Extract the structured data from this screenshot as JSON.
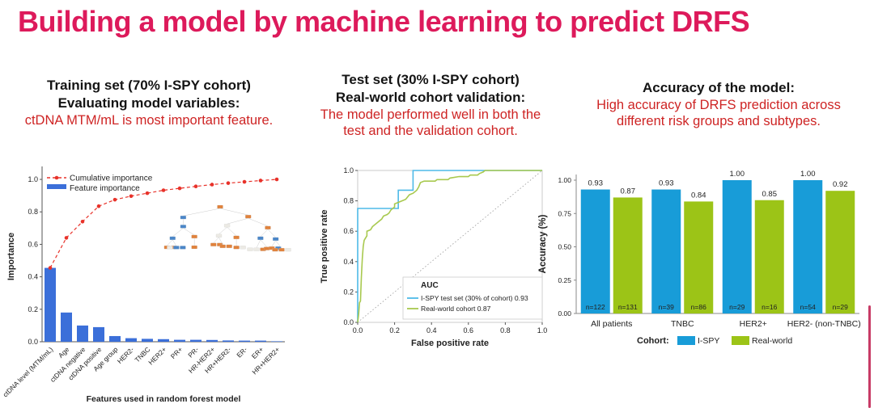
{
  "title": {
    "text": "Building a model by machine learning to predict DRFS",
    "color": "#dd1a5b"
  },
  "panel_left": {
    "heading1": "Training set (70% I-SPY cohort)",
    "heading2": "Evaluating model variables:",
    "sub1": "ctDNA MTM/mL is most important feature."
  },
  "panel_mid": {
    "heading1": "Test set (30% I-SPY cohort)",
    "heading2": "Real-world cohort validation:",
    "sub1": "The model performed well in both the",
    "sub2": "test and the validation cohort."
  },
  "panel_right": {
    "heading1": "Accuracy of the model:",
    "sub1": "High accuracy of DRFS prediction across",
    "sub2": "different risk groups and subtypes."
  },
  "colors": {
    "title_pink": "#dd1a5b",
    "subtitle_red": "#ce2424",
    "feature_bar_blue": "#3b6fd9",
    "cumulative_red": "#e8322a",
    "roc_cyan": "#4fbae8",
    "roc_green": "#a8c94f",
    "ispy_blue": "#189cd8",
    "realworld_green": "#9cc417",
    "n_label_navy": "#14306a"
  },
  "chart_data": [
    {
      "id": "feature-importance",
      "type": "bar-line",
      "xlabel": "Features used in random forest model",
      "ylabel": "Importance",
      "ylim": [
        0,
        1.05
      ],
      "yticks": [
        0.0,
        0.2,
        0.4,
        0.6,
        0.8,
        1.0
      ],
      "grid": false,
      "legend_position": "top-left",
      "inset": "random-forest-tree-diagram",
      "categories": [
        "ctDNA level (MTM/mL)",
        "Age",
        "ctDNA negative",
        "ctDNA positive",
        "Age group",
        "HER2-",
        "TNBC",
        "HER2+",
        "PR+",
        "PR-",
        "HR-HER2+",
        "HR+HER2-",
        "ER-",
        "ER+",
        "HR+HER2+"
      ],
      "series": [
        {
          "name": "Cumulative importance",
          "type": "line",
          "style": "dashed",
          "color": "#e8322a",
          "values": [
            0.455,
            0.64,
            0.74,
            0.835,
            0.875,
            0.897,
            0.915,
            0.933,
            0.945,
            0.957,
            0.968,
            0.977,
            0.985,
            0.993,
            1.0
          ]
        },
        {
          "name": "Feature importance",
          "type": "bar",
          "color": "#3b6fd9",
          "values": [
            0.455,
            0.18,
            0.1,
            0.09,
            0.035,
            0.022,
            0.018,
            0.016,
            0.012,
            0.012,
            0.011,
            0.008,
            0.007,
            0.007,
            0.003
          ]
        }
      ]
    },
    {
      "id": "roc",
      "type": "line",
      "xlabel": "False positive rate",
      "ylabel": "True positive rate",
      "xlim": [
        0,
        1
      ],
      "ylim": [
        0,
        1
      ],
      "xticks": [
        0.0,
        0.2,
        0.4,
        0.6,
        0.8,
        1.0
      ],
      "yticks": [
        0.0,
        0.2,
        0.4,
        0.6,
        0.8,
        1.0
      ],
      "grid": false,
      "diagonal_reference": true,
      "legend_title": "AUC",
      "legend_position": "bottom-right",
      "series": [
        {
          "name": "I-SPY test set (30% of cohort) 0.93",
          "auc": 0.93,
          "color": "#4fbae8",
          "points": [
            [
              0,
              0
            ],
            [
              0,
              0.75
            ],
            [
              0.22,
              0.75
            ],
            [
              0.22,
              0.87
            ],
            [
              0.3,
              0.87
            ],
            [
              0.3,
              1.0
            ],
            [
              1.0,
              1.0
            ]
          ]
        },
        {
          "name": "Real-world cohort 0.87",
          "auc": 0.87,
          "color": "#a8c94f",
          "points": [
            [
              0,
              0
            ],
            [
              0.005,
              0.05
            ],
            [
              0.01,
              0.13
            ],
            [
              0.015,
              0.14
            ],
            [
              0.02,
              0.3
            ],
            [
              0.025,
              0.42
            ],
            [
              0.03,
              0.5
            ],
            [
              0.035,
              0.54
            ],
            [
              0.04,
              0.55
            ],
            [
              0.05,
              0.57
            ],
            [
              0.05,
              0.6
            ],
            [
              0.07,
              0.61
            ],
            [
              0.08,
              0.63
            ],
            [
              0.1,
              0.65
            ],
            [
              0.11,
              0.66
            ],
            [
              0.13,
              0.68
            ],
            [
              0.14,
              0.7
            ],
            [
              0.16,
              0.71
            ],
            [
              0.17,
              0.72
            ],
            [
              0.18,
              0.74
            ],
            [
              0.2,
              0.76
            ],
            [
              0.2,
              0.78
            ],
            [
              0.22,
              0.79
            ],
            [
              0.24,
              0.8
            ],
            [
              0.26,
              0.81
            ],
            [
              0.28,
              0.84
            ],
            [
              0.3,
              0.85
            ],
            [
              0.32,
              0.87
            ],
            [
              0.33,
              0.89
            ],
            [
              0.34,
              0.92
            ],
            [
              0.36,
              0.93
            ],
            [
              0.42,
              0.93
            ],
            [
              0.43,
              0.94
            ],
            [
              0.49,
              0.94
            ],
            [
              0.5,
              0.95
            ],
            [
              0.55,
              0.96
            ],
            [
              0.6,
              0.96
            ],
            [
              0.61,
              0.97
            ],
            [
              0.65,
              0.97
            ],
            [
              0.66,
              0.98
            ],
            [
              0.68,
              0.99
            ],
            [
              0.69,
              1.0
            ],
            [
              1.0,
              1.0
            ]
          ]
        }
      ]
    },
    {
      "id": "accuracy",
      "type": "grouped-bar",
      "ylabel": "Accuracy (%)",
      "ylim": [
        0,
        1.0
      ],
      "yticks": [
        0.0,
        0.25,
        0.5,
        0.75,
        1.0
      ],
      "grid": false,
      "legend_title": "Cohort:",
      "legend_position": "bottom-center",
      "categories": [
        "All patients",
        "TNBC",
        "HER2+",
        "HER2- (non-TNBC)"
      ],
      "series": [
        {
          "name": "I-SPY",
          "color": "#189cd8",
          "values": [
            0.93,
            0.93,
            1.0,
            1.0
          ],
          "value_labels": [
            "0.93",
            "0.93",
            "1.00",
            "1.00"
          ],
          "n_labels": [
            "n=122",
            "n=39",
            "n=29",
            "n=54"
          ]
        },
        {
          "name": "Real-world",
          "color": "#9cc417",
          "values": [
            0.87,
            0.84,
            0.85,
            0.92
          ],
          "value_labels": [
            "0.87",
            "0.84",
            "0.85",
            "0.92"
          ],
          "n_labels": [
            "n=131",
            "n=86",
            "n=16",
            "n=29"
          ]
        }
      ]
    }
  ]
}
